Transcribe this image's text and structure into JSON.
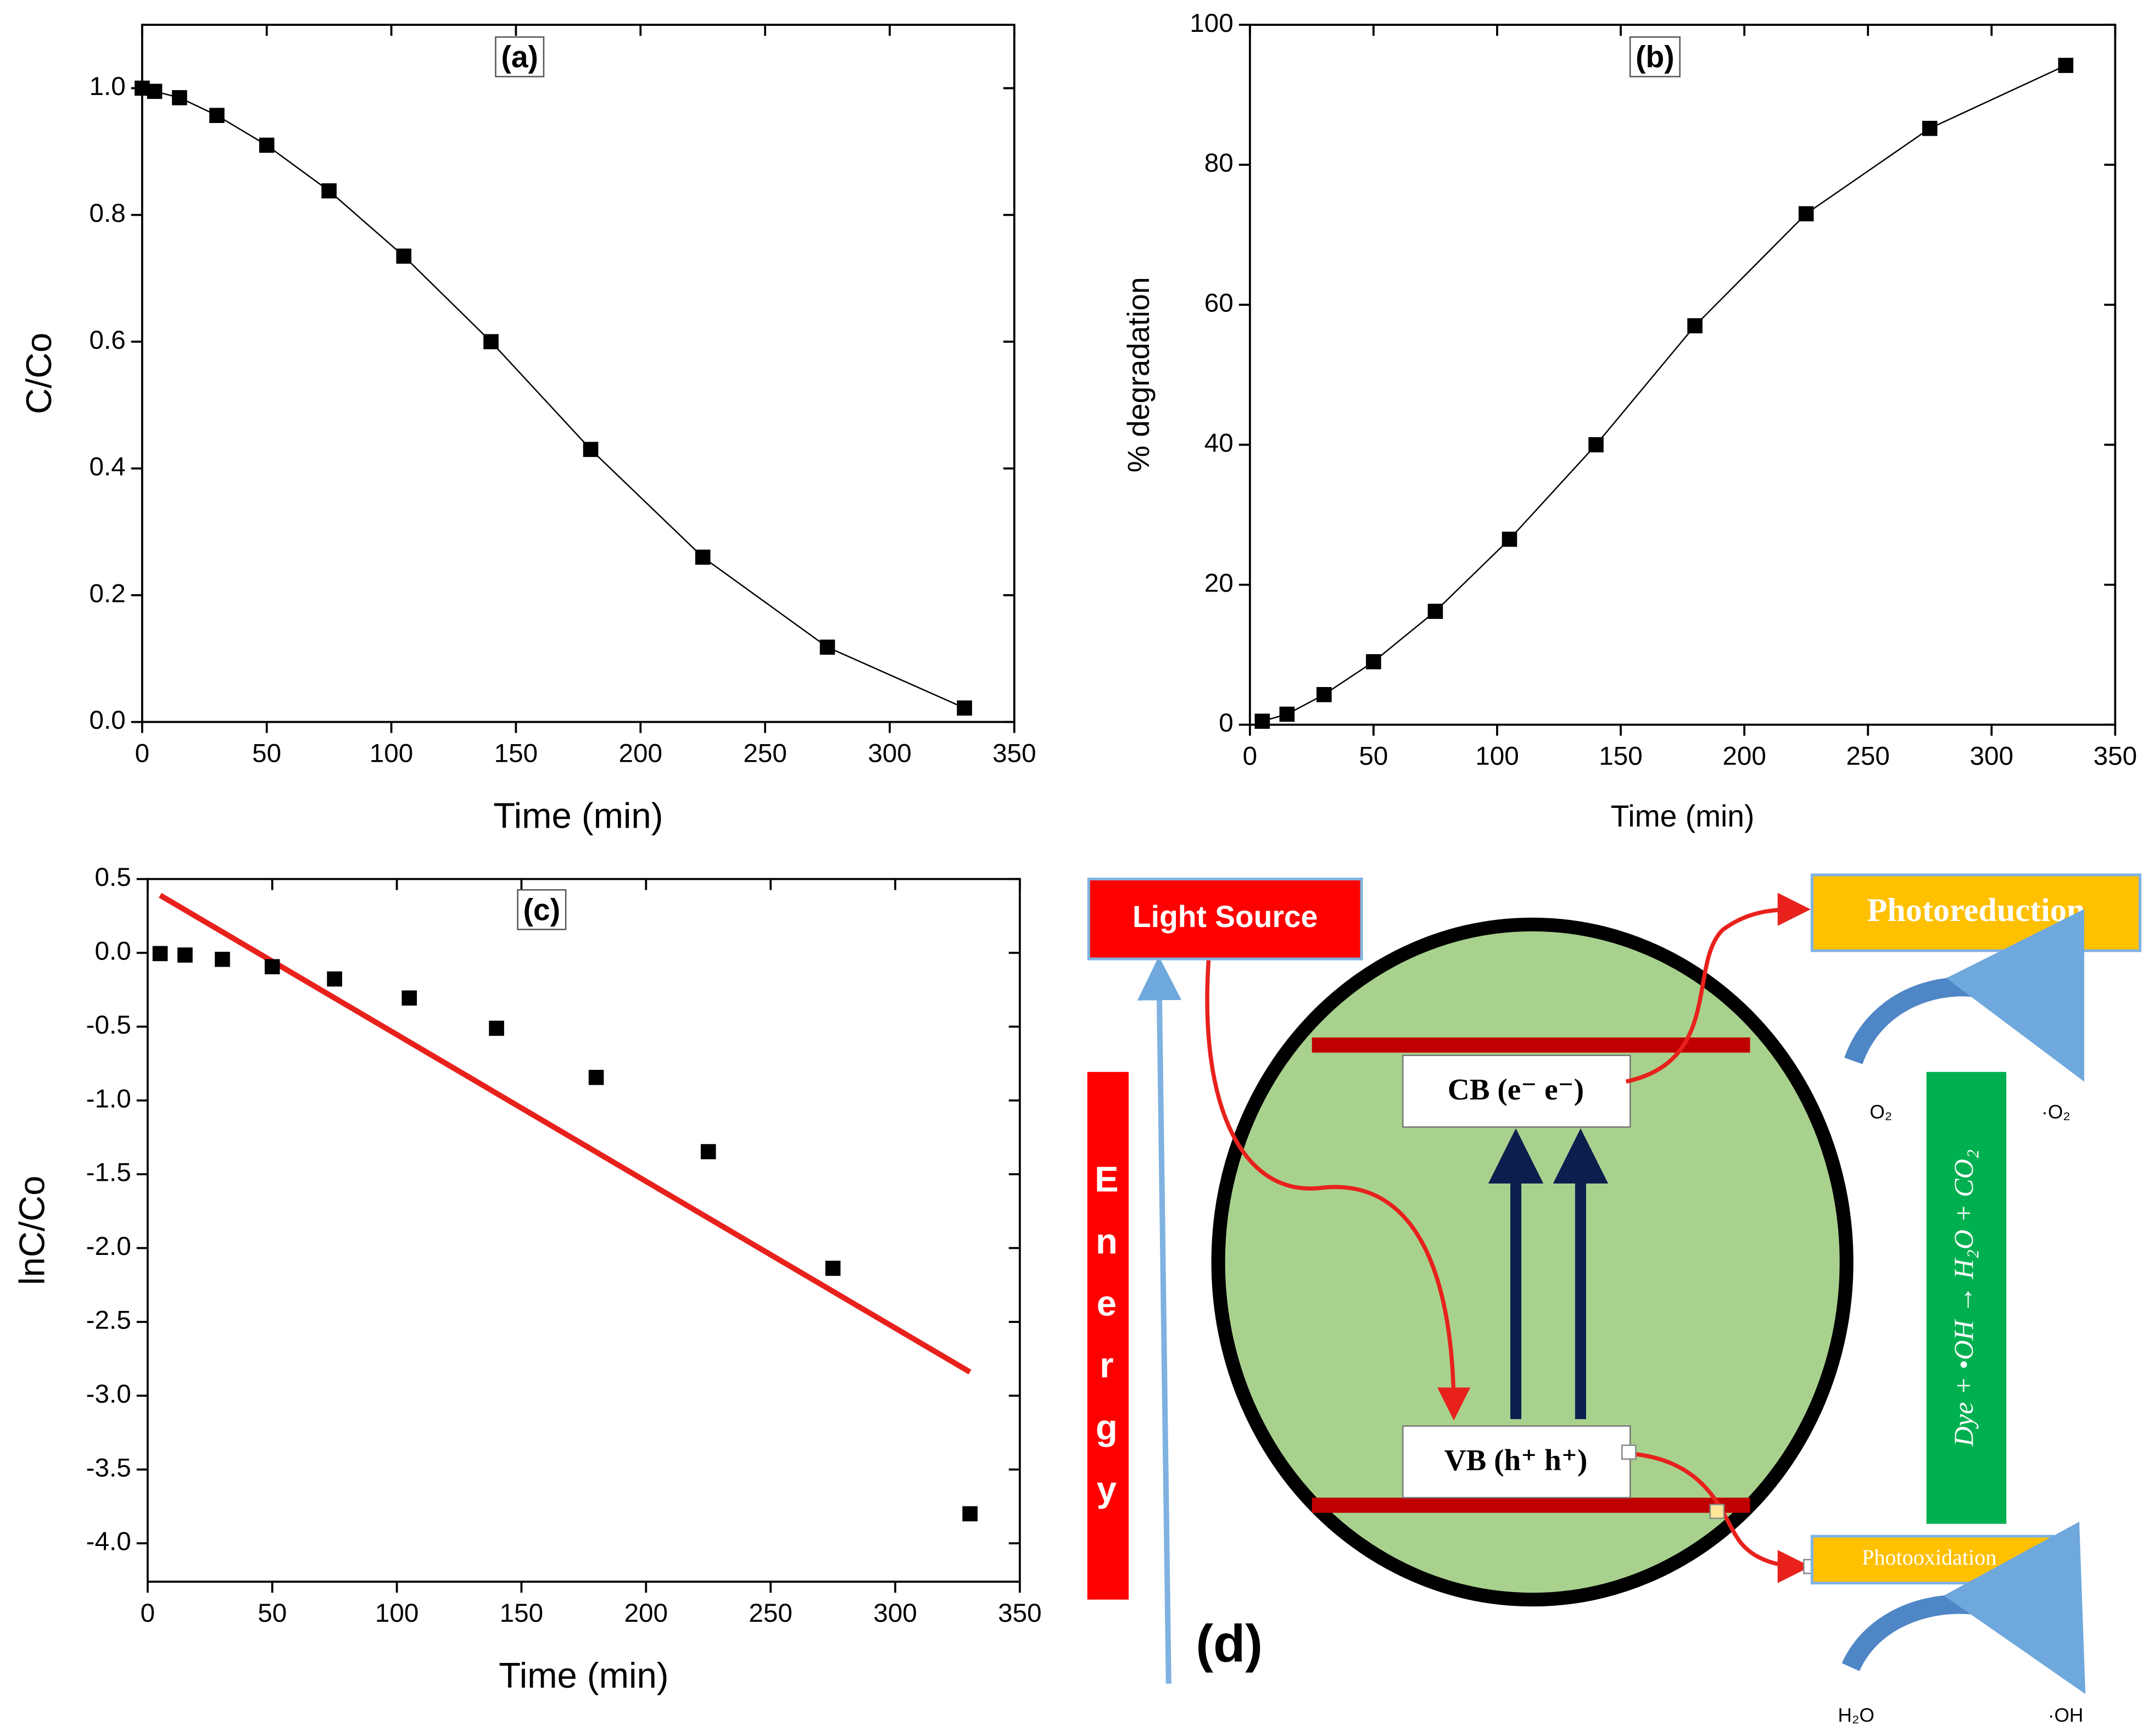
{
  "chart_data": [
    {
      "type": "line",
      "title": "(a)",
      "xlabel": "Time (min)",
      "ylabel": "C/Co",
      "color": "#000000",
      "x": [
        0,
        5,
        15,
        30,
        50,
        75,
        105,
        140,
        180,
        225,
        275,
        330
      ],
      "values": [
        1.0,
        0.995,
        0.985,
        0.957,
        0.91,
        0.838,
        0.735,
        0.6,
        0.43,
        0.26,
        0.118,
        0.022
      ],
      "xlim": [
        0,
        350
      ],
      "xticks": [
        0,
        50,
        100,
        150,
        200,
        250,
        300,
        350
      ],
      "ylim": [
        0,
        1.1
      ],
      "yticks": [
        {
          "value": 0,
          "label": "0.0"
        },
        0.2,
        0.4,
        0.6,
        0.8,
        {
          "value": 1,
          "label": "1.0"
        }
      ]
    },
    {
      "type": "line",
      "title": "(b)",
      "xlabel": "Time (min)",
      "ylabel": "% degradation",
      "color": "#000000",
      "x": [
        5,
        15,
        30,
        50,
        75,
        105,
        140,
        180,
        225,
        275,
        330
      ],
      "values": [
        0.5,
        1.5,
        4.3,
        9,
        16.2,
        26.5,
        40,
        57,
        73,
        85.2,
        94.2
      ],
      "xlim": [
        0,
        350
      ],
      "xticks": [
        0,
        50,
        100,
        150,
        200,
        250,
        300,
        350
      ],
      "ylim": [
        0,
        100
      ],
      "yticks": [
        0,
        20,
        40,
        60,
        80,
        100
      ]
    },
    {
      "type": "scatter",
      "title": "(c)",
      "xlabel": "Time (min)",
      "ylabel": "lnC/Co",
      "color": "#000000",
      "x": [
        5,
        15,
        30,
        50,
        75,
        105,
        140,
        180,
        225,
        275,
        330
      ],
      "values": [
        -0.005,
        -0.015,
        -0.044,
        -0.094,
        -0.177,
        -0.306,
        -0.511,
        -0.844,
        -1.347,
        -2.137,
        -3.8
      ],
      "fit": {
        "x": [
          5,
          330
        ],
        "values": [
          0.39,
          -2.84
        ],
        "color": "#e8211c"
      },
      "xlim": [
        0,
        350
      ],
      "xticks": [
        0,
        50,
        100,
        150,
        200,
        250,
        300,
        350
      ],
      "ylim": [
        -4.26,
        0.5
      ],
      "yticks": [
        0.5,
        {
          "value": 0,
          "label": "0.0"
        },
        -0.5,
        {
          "value": -1,
          "label": "-1.0"
        },
        -1.5,
        {
          "value": -2,
          "label": "-2.0"
        },
        -2.5,
        {
          "value": -3,
          "label": "-3.0"
        },
        -3.5,
        {
          "value": -4,
          "label": "-4.0"
        }
      ]
    }
  ],
  "diagram": {
    "label": "(d)",
    "light_source": "Light Source",
    "energy": "Energy",
    "photoreduction": "Photoreduction",
    "cb": "CB (e⁻ e⁻)",
    "vb": "VB (h⁺ h⁺)",
    "o2": "O₂",
    "o2_radical": "·O₂",
    "reaction": "Dye + •OH → H₂O + CO₂",
    "photooxidation": "Photooxidation",
    "h2o": "H₂O",
    "oh_radical": "·OH"
  }
}
